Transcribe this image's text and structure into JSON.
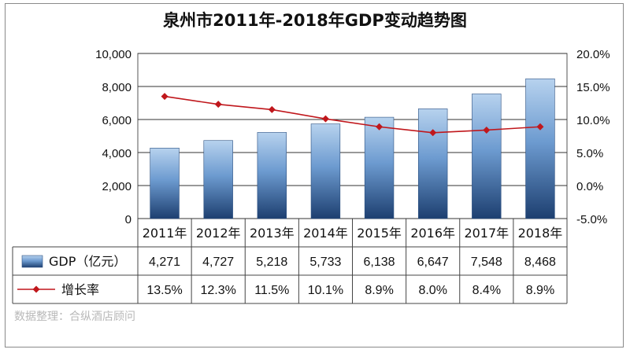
{
  "chart_data": {
    "type": "bar",
    "title": "泉州市2011年-2018年GDP变动趋势图",
    "categories": [
      "2011年",
      "2012年",
      "2013年",
      "2014年",
      "2015年",
      "2016年",
      "2017年",
      "2018年"
    ],
    "series": [
      {
        "name": "GDP（亿元）",
        "type": "bar",
        "axis": "left",
        "values": [
          4271,
          4727,
          5218,
          5733,
          6138,
          6647,
          7548,
          8468
        ],
        "labels": [
          "4,271",
          "4,727",
          "5,218",
          "5,733",
          "6,138",
          "6,647",
          "7,548",
          "8,468"
        ],
        "color": "#4f7fbf"
      },
      {
        "name": "增长率",
        "type": "line",
        "axis": "right",
        "values": [
          13.5,
          12.3,
          11.5,
          10.1,
          8.9,
          8.0,
          8.4,
          8.9
        ],
        "labels": [
          "13.5%",
          "12.3%",
          "11.5%",
          "10.1%",
          "8.9%",
          "8.0%",
          "8.4%",
          "8.9%"
        ],
        "color": "#c0171c"
      }
    ],
    "y_left": {
      "ylim": [
        0,
        10000
      ],
      "ticks": [
        "10,000",
        "8,000",
        "6,000",
        "4,000",
        "2,000",
        "0"
      ]
    },
    "y_right": {
      "ylim": [
        -5,
        20
      ],
      "ticks": [
        "20.0%",
        "15.0%",
        "10.0%",
        "5.0%",
        "0.0%",
        "-5.0%"
      ]
    },
    "grid": true,
    "legend": "data-table"
  },
  "watermark": "数据整理：合纵酒店顾问"
}
